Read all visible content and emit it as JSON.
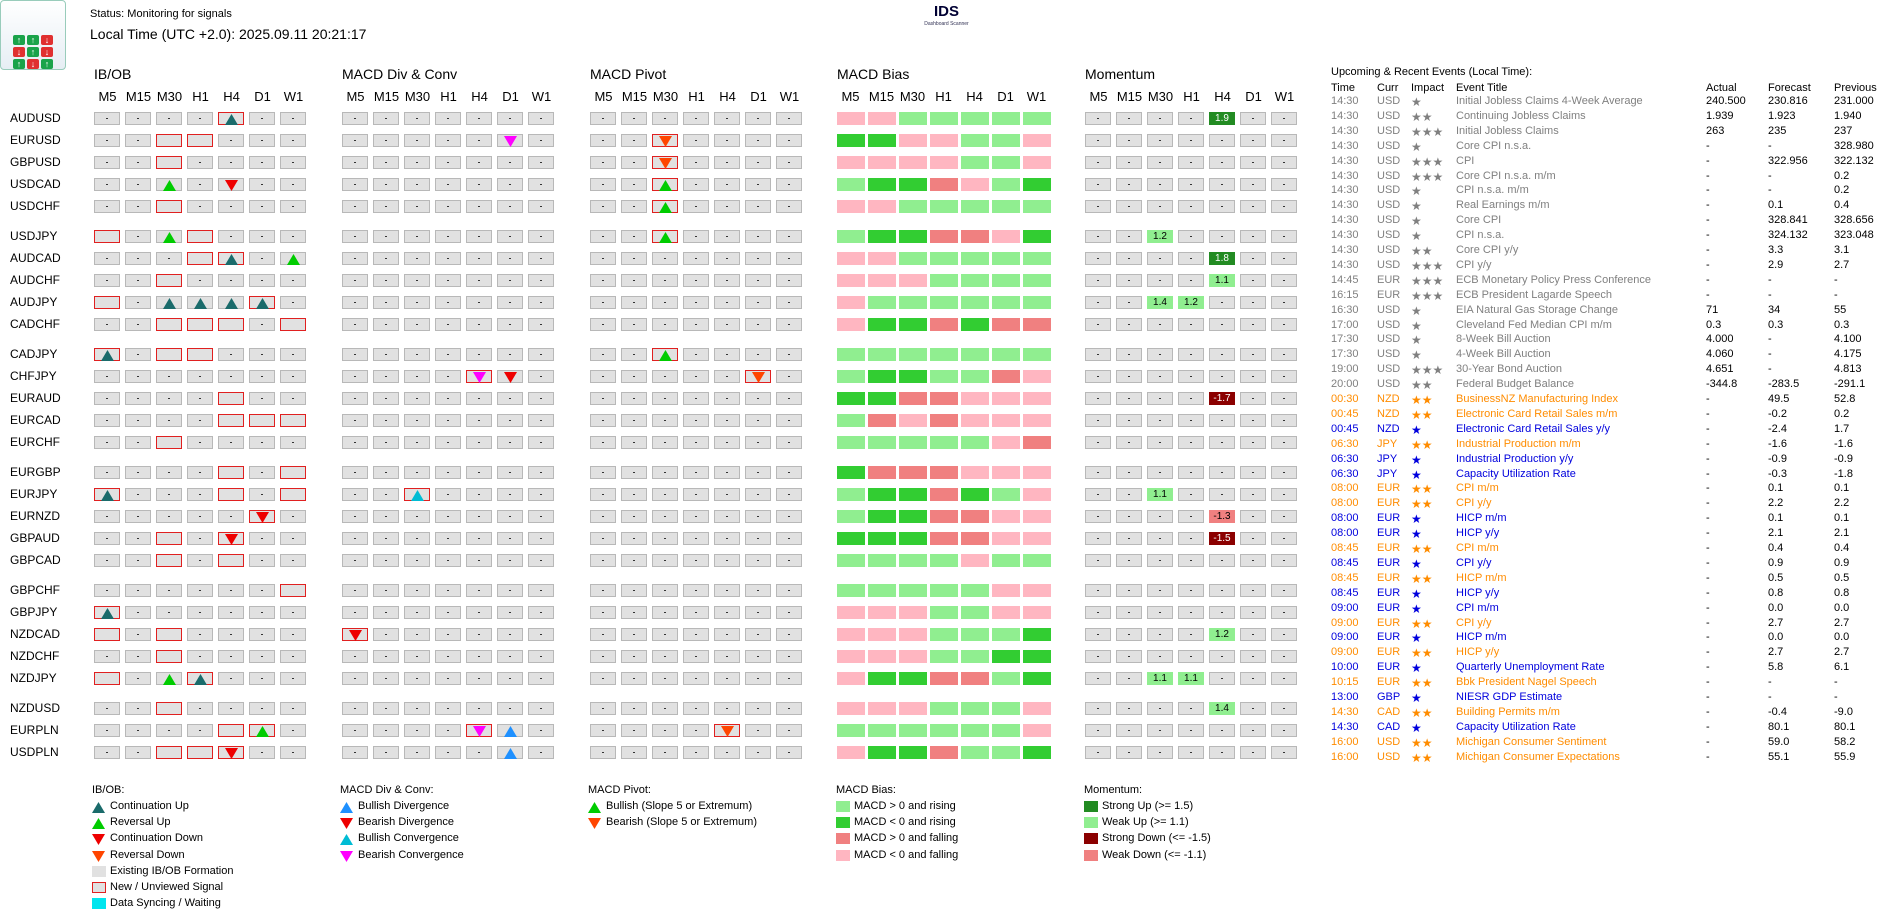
{
  "logo": {
    "text": "IDS",
    "sub": "Dashboard Scanner"
  },
  "header": {
    "status": "Status: Monitoring for signals",
    "local_time": "Local Time (UTC +2.0): 2025.09.11 20:21:17"
  },
  "sections": [
    "IB/OB",
    "MACD Div & Conv",
    "MACD Pivot",
    "MACD Bias",
    "Momentum"
  ],
  "timeframes": [
    "M5",
    "M15",
    "M30",
    "H1",
    "H4",
    "D1",
    "W1"
  ],
  "pairs": [
    "AUDUSD",
    "EURUSD",
    "GBPUSD",
    "USDCAD",
    "USDCHF",
    "USDJPY",
    "AUDCAD",
    "AUDCHF",
    "AUDJPY",
    "CADCHF",
    "CADJPY",
    "CHFJPY",
    "EURAUD",
    "EURCAD",
    "EURCHF",
    "EURGBP",
    "EURJPY",
    "EURNZD",
    "GBPAUD",
    "GBPCAD",
    "GBPCHF",
    "GBPJPY",
    "NZDCAD",
    "NZDCHF",
    "NZDJPY",
    "NZDUSD",
    "EURPLN",
    "USDPLN"
  ],
  "grid": {
    "ibob": [
      ".,.,.,.,Nt,.,.",
      ".,.,N,N,.,.,.",
      ".,.,N,.,.,.,.",
      ".,.,g,.,r,.,.",
      ".,.,N,.,.,.,.",
      "N,.,g,N,.,.,.",
      ".,.,.,N,Nt,.,g",
      ".,.,N,.,.,.,.",
      "N,.,t,t,t,Nt,.",
      ".,.,N,N,N,.,N",
      "Nt,.,N,N,.,.,.",
      ".,.,.,.,.,.,.",
      ".,.,.,.,N,.,.",
      ".,.,.,.,N,N,N",
      ".,.,N,.,.,.,.",
      ".,.,.,.,N,.,N",
      "Nt,.,.,.,N,.,N",
      ".,.,.,.,.,Nr,.",
      ".,.,N,.,Nr,.,.",
      ".,.,N,.,N,.,.",
      ".,.,.,.,.,.,N",
      "Nt,.,.,.,.,.,.",
      "N,.,N,.,.,.,.",
      ".,.,N,.,.,.,.",
      "N,.,g,Nt,.,.,.",
      ".,.,N,.,.,.,.",
      ".,.,.,.,N,Ng,.",
      ".,.,N,N,Nr,.,."
    ],
    "div": [
      ".,.,.,.,.,.,.",
      ".,.,.,.,.,m,.",
      ".,.,.,.,.,.,.",
      ".,.,.,.,.,.,.",
      ".,.,.,.,.,.,.",
      ".,.,.,.,.,.,.",
      ".,.,.,.,.,.,.",
      ".,.,.,.,.,.,.",
      ".,.,.,.,.,.,.",
      ".,.,.,.,.,.,.",
      ".,.,.,.,.,.,.",
      ".,.,.,.,Nm,r,.",
      ".,.,.,.,.,.,.",
      ".,.,.,.,.,.,.",
      ".,.,.,.,.,.,.",
      ".,.,.,.,.,.,.",
      ".,.,Nc,.,.,.,.",
      ".,.,.,.,.,.,.",
      ".,.,.,.,.,.,.",
      ".,.,.,.,.,.,.",
      ".,.,.,.,.,.,.",
      ".,.,.,.,.,.,.",
      "Nr,.,.,.,.,.,.",
      ".,.,.,.,.,.,.",
      ".,.,.,.,.,.,.",
      ".,.,.,.,.,.,.",
      ".,.,.,.,Nm,b,.",
      ".,.,.,.,.,b,."
    ],
    "pivot": [
      ".,.,.,.,.,.,.",
      ".,.,No,.,.,.,.",
      ".,.,No,.,.,.,.",
      ".,.,Ng,.,.,.,.",
      ".,.,Ng,.,.,.,.",
      ".,.,Ng,.,.,.,.",
      ".,.,.,.,.,.,.",
      ".,.,.,.,.,.,.",
      ".,.,.,.,.,.,.",
      ".,.,.,.,.,.,.",
      ".,.,Ng,.,.,.,.",
      ".,.,.,.,.,No,.",
      ".,.,.,.,.,.,.",
      ".,.,.,.,.,.,.",
      ".,.,.,.,.,.,.",
      ".,.,.,.,.,.,.",
      ".,.,.,.,.,.,.",
      ".,.,.,.,.,.,.",
      ".,.,.,.,.,.,.",
      ".,.,.,.,.,.,.",
      ".,.,.,.,.,.,.",
      ".,.,.,.,.,.,.",
      ".,.,.,.,.,.,.",
      ".,.,.,.,.,.,.",
      ".,.,.,.,.,.,.",
      ".,.,.,.,.,.,.",
      ".,.,.,.,No,.,.",
      ".,.,.,.,.,.,."
    ],
    "bias": [
      "3,3,0,0,0,0,0",
      "1,1,3,3,0,0,3",
      "3,3,3,3,0,0,3",
      "0,1,1,2,3,0,1",
      "3,3,0,0,0,0,0",
      "0,1,1,2,2,3,1",
      "3,3,0,0,0,0,0",
      "3,3,3,0,0,0,0",
      "3,0,0,0,0,0,0",
      "3,1,1,2,1,2,2",
      "0,0,0,0,0,0,0",
      "0,1,1,0,0,2,3",
      "1,1,2,2,3,3,3",
      "0,2,3,2,3,3,3",
      "0,0,0,0,0,3,2",
      "1,2,2,2,3,3,3",
      "0,1,1,2,1,0,3",
      "0,1,1,2,2,3,3",
      "1,1,1,2,2,3,3",
      "0,0,0,0,3,0,0",
      "0,0,0,0,0,3,3",
      "3,3,3,0,0,3,3",
      "3,3,3,0,0,0,1",
      "3,3,3,0,0,1,1",
      "3,1,1,2,2,0,1",
      "3,3,3,0,0,0,3",
      "0,0,0,0,0,0,3",
      "3,1,1,2,0,0,1"
    ],
    "mom": [
      ",,,,1.9|su,,",
      ",,,,,,",
      ",,,,,,",
      ",,,,,,",
      ",,,,,,",
      ",,1.2|wu,,,,",
      ",,,,1.8|su,,",
      ",,,,1.1|wu,,",
      ",,1.4|wu,1.2|wu,,,",
      ",,,,,,",
      ",,,,,,",
      ",,,,,,",
      ",,,,-1.7|sd,,",
      ",,,,,,",
      ",,,,,,",
      ",,,,,,",
      ",,1.1|wu,,,,",
      ",,,,-1.3|wd,,",
      ",,,,-1.5|sd,,",
      ",,,,,,",
      ",,,,,,",
      ",,,,,,",
      ",,,,1.2|wu,,",
      ",,,,,,",
      ",,1.1|wu,1.1|wu,,,",
      ",,,,1.4|wu,,",
      ",,,,,,",
      ",,,,,,"
    ]
  },
  "colors": {
    "bias": [
      "#90ee90",
      "#32cd32",
      "#f08080",
      "#ffb6c1"
    ],
    "mom": {
      "su": "#228b22",
      "wu": "#90ee90",
      "sd": "#8b0000",
      "wd": "#f08080"
    },
    "tri": {
      "t": "#1a6b6b",
      "g": "#00cc00",
      "r": "#ee0000",
      "o": "#ff4500",
      "b": "#1e90ff",
      "c": "#00bcd4",
      "m": "#ff00ff"
    }
  },
  "legend": {
    "ibob": {
      "title": "IB/OB:",
      "items": [
        "Continuation Up",
        "Reversal Up",
        "Continuation Down",
        "Reversal Down",
        "Existing IB/OB Formation",
        "New / Unviewed Signal",
        "Data Syncing / Waiting"
      ]
    },
    "div": {
      "title": "MACD Div & Conv:",
      "items": [
        "Bullish Divergence",
        "Bearish Divergence",
        "Bullish Convergence",
        "Bearish Convergence"
      ]
    },
    "pivot": {
      "title": "MACD Pivot:",
      "items": [
        "Bullish (Slope 5 or Extremum)",
        "Bearish (Slope 5 or Extremum)"
      ]
    },
    "bias": {
      "title": "MACD Bias:",
      "items": [
        "MACD > 0 and rising",
        "MACD < 0 and rising",
        "MACD > 0 and falling",
        "MACD < 0 and falling"
      ]
    },
    "mom": {
      "title": "Momentum:",
      "items": [
        "Strong Up (>= 1.5)",
        "Weak Up (>= 1.1)",
        "Strong Down (<= -1.5)",
        "Weak Down (<= -1.1)"
      ]
    }
  },
  "events": {
    "title": "Upcoming & Recent Events (Local Time):",
    "headers": [
      "Time",
      "Curr",
      "Impact",
      "Event Title",
      "Actual",
      "Forecast",
      "Previous"
    ],
    "rows": [
      [
        "14:30",
        "USD",
        "★",
        "Initial Jobless Claims 4-Week Average",
        "240.500",
        "230.816",
        "231.000",
        "past"
      ],
      [
        "14:30",
        "USD",
        "★★",
        "Continuing Jobless Claims",
        "1.939",
        "1.923",
        "1.940",
        "past"
      ],
      [
        "14:30",
        "USD",
        "★★★",
        "Initial Jobless Claims",
        "263",
        "235",
        "237",
        "past"
      ],
      [
        "14:30",
        "USD",
        "★",
        "Core CPI n.s.a.",
        "-",
        "-",
        "328.980",
        "past"
      ],
      [
        "14:30",
        "USD",
        "★★★",
        "CPI",
        "-",
        "322.956",
        "322.132",
        "past"
      ],
      [
        "14:30",
        "USD",
        "★★★",
        "Core CPI n.s.a. m/m",
        "-",
        "-",
        "0.2",
        "past"
      ],
      [
        "14:30",
        "USD",
        "★",
        "CPI n.s.a. m/m",
        "-",
        "-",
        "0.2",
        "past"
      ],
      [
        "14:30",
        "USD",
        "★",
        "Real Earnings m/m",
        "-",
        "0.1",
        "0.4",
        "past"
      ],
      [
        "14:30",
        "USD",
        "★",
        "Core CPI",
        "-",
        "328.841",
        "328.656",
        "past"
      ],
      [
        "14:30",
        "USD",
        "★",
        "CPI n.s.a.",
        "-",
        "324.132",
        "323.048",
        "past"
      ],
      [
        "14:30",
        "USD",
        "★★",
        "Core CPI y/y",
        "-",
        "3.3",
        "3.1",
        "past"
      ],
      [
        "14:30",
        "USD",
        "★★★",
        "CPI y/y",
        "-",
        "2.9",
        "2.7",
        "past"
      ],
      [
        "14:45",
        "EUR",
        "★★★",
        "ECB Monetary Policy Press Conference",
        "-",
        "-",
        "-",
        "past"
      ],
      [
        "16:15",
        "EUR",
        "★★★",
        "ECB President Lagarde Speech",
        "-",
        "-",
        "-",
        "past"
      ],
      [
        "16:30",
        "USD",
        "★",
        "EIA Natural Gas Storage Change",
        "71",
        "34",
        "55",
        "past"
      ],
      [
        "17:00",
        "USD",
        "★",
        "Cleveland Fed Median CPI m/m",
        "0.3",
        "0.3",
        "0.3",
        "past"
      ],
      [
        "17:30",
        "USD",
        "★",
        "8-Week Bill Auction",
        "4.000",
        "-",
        "4.100",
        "past"
      ],
      [
        "17:30",
        "USD",
        "★",
        "4-Week Bill Auction",
        "4.060",
        "-",
        "4.175",
        "past"
      ],
      [
        "19:00",
        "USD",
        "★★★",
        "30-Year Bond Auction",
        "4.651",
        "-",
        "4.813",
        "past"
      ],
      [
        "20:00",
        "USD",
        "★★",
        "Federal Budget Balance",
        "-344.8",
        "-283.5",
        "-291.1",
        "past"
      ],
      [
        "00:30",
        "NZD",
        "★★",
        "BusinessNZ Manufacturing Index",
        "-",
        "49.5",
        "52.8",
        "orange"
      ],
      [
        "00:45",
        "NZD",
        "★★",
        "Electronic Card Retail Sales m/m",
        "-",
        "-0.2",
        "0.2",
        "orange"
      ],
      [
        "00:45",
        "NZD",
        "★",
        "Electronic Card Retail Sales y/y",
        "-",
        "-2.4",
        "1.7",
        "blue"
      ],
      [
        "06:30",
        "JPY",
        "★★",
        "Industrial Production m/m",
        "-",
        "-1.6",
        "-1.6",
        "orange"
      ],
      [
        "06:30",
        "JPY",
        "★",
        "Industrial Production y/y",
        "-",
        "-0.9",
        "-0.9",
        "blue"
      ],
      [
        "06:30",
        "JPY",
        "★",
        "Capacity Utilization Rate",
        "-",
        "-0.3",
        "-1.8",
        "blue"
      ],
      [
        "08:00",
        "EUR",
        "★★",
        "CPI m/m",
        "-",
        "0.1",
        "0.1",
        "orange"
      ],
      [
        "08:00",
        "EUR",
        "★★",
        "CPI y/y",
        "-",
        "2.2",
        "2.2",
        "orange"
      ],
      [
        "08:00",
        "EUR",
        "★",
        "HICP m/m",
        "-",
        "0.1",
        "0.1",
        "blue"
      ],
      [
        "08:00",
        "EUR",
        "★",
        "HICP y/y",
        "-",
        "2.1",
        "2.1",
        "blue"
      ],
      [
        "08:45",
        "EUR",
        "★★",
        "CPI m/m",
        "-",
        "0.4",
        "0.4",
        "orange"
      ],
      [
        "08:45",
        "EUR",
        "★",
        "CPI y/y",
        "-",
        "0.9",
        "0.9",
        "blue"
      ],
      [
        "08:45",
        "EUR",
        "★★",
        "HICP m/m",
        "-",
        "0.5",
        "0.5",
        "orange"
      ],
      [
        "08:45",
        "EUR",
        "★",
        "HICP y/y",
        "-",
        "0.8",
        "0.8",
        "blue"
      ],
      [
        "09:00",
        "EUR",
        "★",
        "CPI m/m",
        "-",
        "0.0",
        "0.0",
        "blue"
      ],
      [
        "09:00",
        "EUR",
        "★★",
        "CPI y/y",
        "-",
        "2.7",
        "2.7",
        "orange"
      ],
      [
        "09:00",
        "EUR",
        "★",
        "HICP m/m",
        "-",
        "0.0",
        "0.0",
        "blue"
      ],
      [
        "09:00",
        "EUR",
        "★★",
        "HICP y/y",
        "-",
        "2.7",
        "2.7",
        "orange"
      ],
      [
        "10:00",
        "EUR",
        "★",
        "Quarterly Unemployment Rate",
        "-",
        "5.8",
        "6.1",
        "blue"
      ],
      [
        "10:15",
        "EUR",
        "★★",
        "Bbk President Nagel Speech",
        "-",
        "-",
        "-",
        "orange"
      ],
      [
        "13:00",
        "GBP",
        "★",
        "NIESR GDP Estimate",
        "-",
        "-",
        "-",
        "blue"
      ],
      [
        "14:30",
        "CAD",
        "★★",
        "Building Permits m/m",
        "-",
        "-0.4",
        "-9.0",
        "orange"
      ],
      [
        "14:30",
        "CAD",
        "★",
        "Capacity Utilization Rate",
        "-",
        "80.1",
        "80.1",
        "blue"
      ],
      [
        "16:00",
        "USD",
        "★★",
        "Michigan Consumer Sentiment",
        "-",
        "59.0",
        "58.2",
        "orange"
      ],
      [
        "16:00",
        "USD",
        "★★",
        "Michigan Consumer Expectations",
        "-",
        "55.1",
        "55.9",
        "orange"
      ]
    ]
  }
}
